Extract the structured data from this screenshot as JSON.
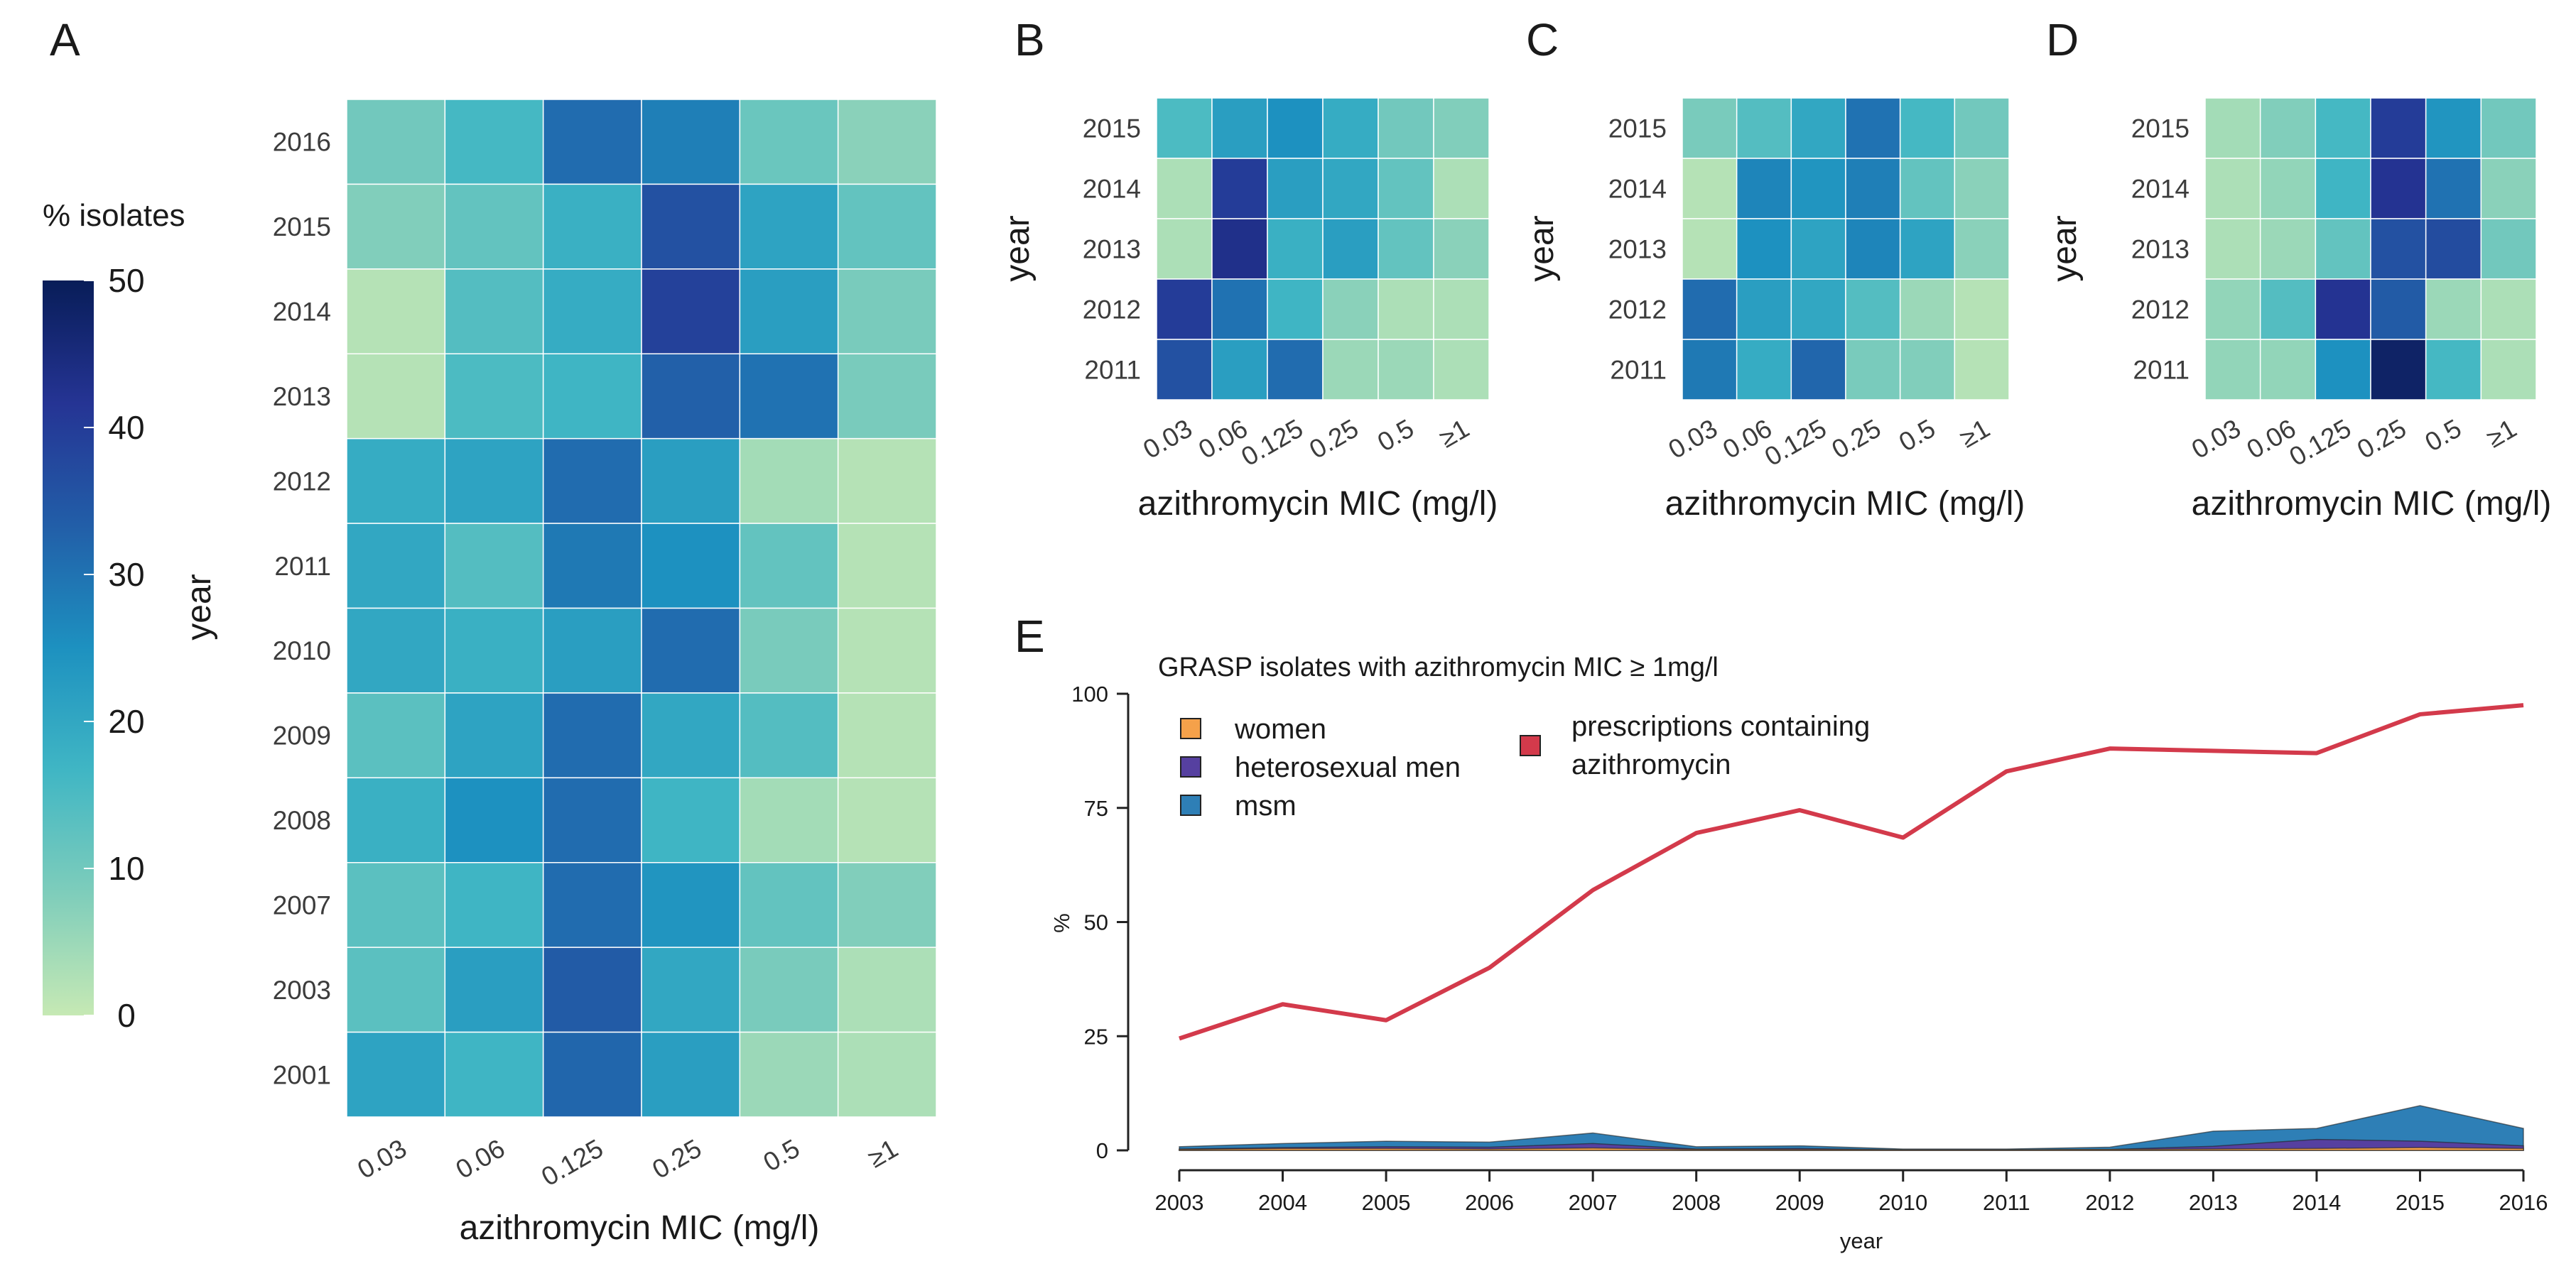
{
  "colors": {
    "scale": [
      "#c6e9b4",
      "#7ecdbb",
      "#40b6c4",
      "#1d91c0",
      "#225ea8",
      "#253494",
      "#081d58"
    ],
    "women": "#f5a14a",
    "het_men": "#5640a0",
    "msm": "#2e7fb6",
    "prescriptions": "#d33a4b"
  },
  "colorbar": {
    "title": "% isolates",
    "ticks": [
      "50",
      "40",
      "30",
      "20",
      "10",
      "0"
    ]
  },
  "chart_data": [
    {
      "panel": "A",
      "type": "heatmap",
      "ylabel": "year",
      "xlabel": "azithromycin MIC (mg/l)",
      "x_categories": [
        "0.03",
        "0.06",
        "0.125",
        "0.25",
        "0.5",
        "≥1"
      ],
      "y_categories": [
        "2016",
        "2015",
        "2014",
        "2013",
        "2012",
        "2011",
        "2010",
        "2009",
        "2008",
        "2007",
        "2003",
        "2001"
      ],
      "values": [
        [
          10,
          16,
          31,
          28,
          11,
          7
        ],
        [
          8,
          12,
          18,
          36,
          21,
          12
        ],
        [
          2,
          14,
          19,
          39,
          22,
          9
        ],
        [
          2,
          15,
          17,
          33,
          30,
          9
        ],
        [
          19,
          21,
          31,
          22,
          4,
          2
        ],
        [
          20,
          14,
          29,
          25,
          12,
          2
        ],
        [
          20,
          18,
          22,
          31,
          9,
          2
        ],
        [
          13,
          21,
          31,
          20,
          14,
          2
        ],
        [
          18,
          25,
          31,
          17,
          4,
          2
        ],
        [
          13,
          17,
          31,
          24,
          12,
          8
        ],
        [
          13,
          22,
          34,
          20,
          9,
          3
        ],
        [
          21,
          17,
          32,
          22,
          5,
          3
        ]
      ],
      "range": [
        0,
        50
      ]
    },
    {
      "panel": "B",
      "type": "heatmap",
      "ylabel": "year",
      "xlabel": "azithromycin MIC (mg/l)",
      "x_categories": [
        "0.03",
        "0.06",
        "0.125",
        "0.25",
        "0.5",
        "≥1"
      ],
      "y_categories": [
        "2015",
        "2014",
        "2013",
        "2012",
        "2011"
      ],
      "values": [
        [
          15,
          22,
          25,
          19,
          10,
          8
        ],
        [
          3,
          40,
          22,
          20,
          12,
          3
        ],
        [
          3,
          43,
          18,
          22,
          12,
          7
        ],
        [
          40,
          30,
          17,
          7,
          3,
          3
        ],
        [
          36,
          22,
          31,
          5,
          5,
          3
        ]
      ],
      "range": [
        0,
        50
      ]
    },
    {
      "panel": "C",
      "type": "heatmap",
      "ylabel": "year",
      "xlabel": "azithromycin MIC (mg/l)",
      "x_categories": [
        "0.03",
        "0.06",
        "0.125",
        "0.25",
        "0.5",
        "≥1"
      ],
      "y_categories": [
        "2015",
        "2014",
        "2013",
        "2012",
        "2011"
      ],
      "values": [
        [
          9,
          14,
          20,
          30,
          16,
          10
        ],
        [
          2,
          27,
          24,
          28,
          12,
          7
        ],
        [
          2,
          25,
          21,
          27,
          21,
          7
        ],
        [
          31,
          22,
          20,
          14,
          5,
          2
        ],
        [
          29,
          19,
          32,
          9,
          8,
          2
        ]
      ],
      "range": [
        0,
        50
      ]
    },
    {
      "panel": "D",
      "type": "heatmap",
      "ylabel": "year",
      "xlabel": "azithromycin MIC (mg/l)",
      "x_categories": [
        "0.03",
        "0.06",
        "0.125",
        "0.25",
        "0.5",
        "≥1"
      ],
      "y_categories": [
        "2015",
        "2014",
        "2013",
        "2012",
        "2011"
      ],
      "values": [
        [
          4,
          8,
          16,
          40,
          24,
          10
        ],
        [
          3,
          6,
          17,
          42,
          30,
          7
        ],
        [
          3,
          5,
          12,
          36,
          37,
          10
        ],
        [
          6,
          14,
          42,
          34,
          5,
          3
        ],
        [
          6,
          6,
          25,
          48,
          16,
          3
        ]
      ],
      "range": [
        0,
        50
      ]
    },
    {
      "panel": "E",
      "type": "area",
      "title": "GRASP isolates with azithromycin MIC ≥ 1mg/l",
      "xlabel": "year",
      "ylabel": "%",
      "x": [
        2003,
        2004,
        2005,
        2006,
        2007,
        2008,
        2009,
        2010,
        2011,
        2012,
        2013,
        2014,
        2015,
        2016
      ],
      "ylim": [
        0,
        100
      ],
      "yticks": [
        0,
        25,
        50,
        75,
        100
      ],
      "legend": {
        "women": "women",
        "het_men": "heterosexual men",
        "msm": "msm",
        "prescriptions": "prescriptions containing azithromycin",
        "prescriptions_line1": "prescriptions containing",
        "prescriptions_line2": "azithromycin"
      },
      "series": [
        {
          "name": "women",
          "kind": "area",
          "values": [
            0.2,
            0.4,
            0.4,
            0.3,
            0.5,
            0.2,
            0.2,
            0.1,
            0.1,
            0.2,
            0.3,
            0.4,
            0.6,
            0.4
          ]
        },
        {
          "name": "heterosexual men",
          "kind": "area",
          "values": [
            0.3,
            0.6,
            0.8,
            0.7,
            1.5,
            0.3,
            0.4,
            0.1,
            0.1,
            0.2,
            0.9,
            2.4,
            2.0,
            1.0
          ]
        },
        {
          "name": "msm",
          "kind": "area",
          "values": [
            0.8,
            1.5,
            2.0,
            1.8,
            3.8,
            0.8,
            1.0,
            0.3,
            0.3,
            0.7,
            4.2,
            4.8,
            9.8,
            4.8
          ]
        },
        {
          "name": "prescriptions containing azithromycin",
          "kind": "line",
          "values": [
            24.5,
            32,
            28.5,
            40,
            57,
            69.5,
            74.5,
            68.5,
            83,
            88,
            87.5,
            87,
            95.5,
            97.5
          ]
        }
      ]
    }
  ]
}
